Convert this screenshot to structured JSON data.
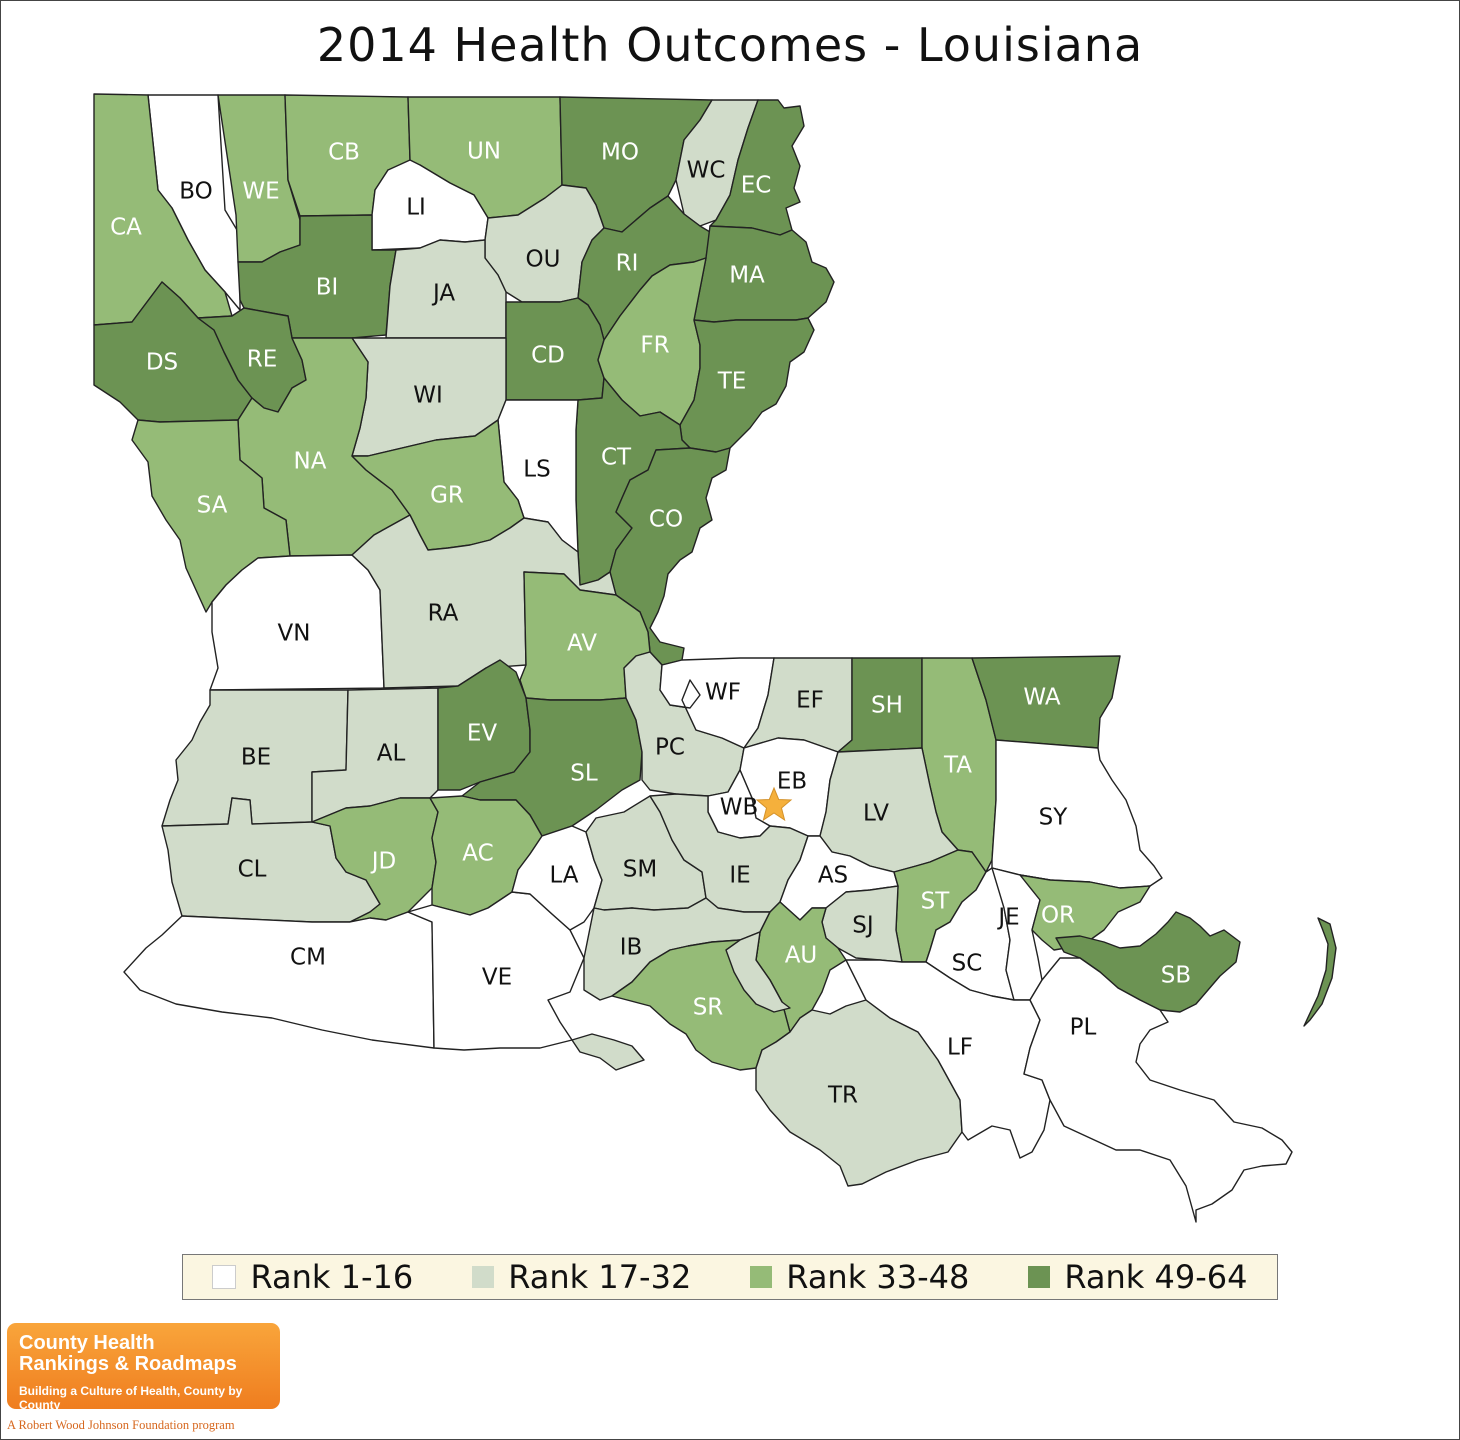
{
  "title": "2014 Health Outcomes - Louisiana",
  "colors": {
    "rank_1_16": "#ffffff",
    "rank_17_32": "#d1dcca",
    "rank_33_48": "#95bb77",
    "rank_49_64": "#6c9353",
    "star": "#f5b03c",
    "dark_label": "#ffffff",
    "light_label": "#111111"
  },
  "legend": [
    {
      "label": "Rank 1-16",
      "color": "#ffffff"
    },
    {
      "label": "Rank 17-32",
      "color": "#d1dcca"
    },
    {
      "label": "Rank 33-48",
      "color": "#95bb77"
    },
    {
      "label": "Rank 49-64",
      "color": "#6c9353"
    }
  ],
  "parishes": [
    {
      "code": "BO",
      "rank_group": "1-16"
    },
    {
      "code": "CA",
      "rank_group": "33-48"
    },
    {
      "code": "WE",
      "rank_group": "33-48"
    },
    {
      "code": "CB",
      "rank_group": "33-48"
    },
    {
      "code": "UN",
      "rank_group": "33-48"
    },
    {
      "code": "MO",
      "rank_group": "49-64"
    },
    {
      "code": "WC",
      "rank_group": "17-32"
    },
    {
      "code": "EC",
      "rank_group": "49-64"
    },
    {
      "code": "LI",
      "rank_group": "1-16"
    },
    {
      "code": "OU",
      "rank_group": "17-32"
    },
    {
      "code": "RI",
      "rank_group": "49-64"
    },
    {
      "code": "MA",
      "rank_group": "49-64"
    },
    {
      "code": "BI",
      "rank_group": "49-64"
    },
    {
      "code": "JA",
      "rank_group": "17-32"
    },
    {
      "code": "DS",
      "rank_group": "49-64"
    },
    {
      "code": "RE",
      "rank_group": "49-64"
    },
    {
      "code": "CD",
      "rank_group": "49-64"
    },
    {
      "code": "FR",
      "rank_group": "33-48"
    },
    {
      "code": "TE",
      "rank_group": "49-64"
    },
    {
      "code": "WI",
      "rank_group": "17-32"
    },
    {
      "code": "NA",
      "rank_group": "33-48"
    },
    {
      "code": "CT",
      "rank_group": "49-64"
    },
    {
      "code": "LS",
      "rank_group": "1-16"
    },
    {
      "code": "CO",
      "rank_group": "49-64"
    },
    {
      "code": "SA",
      "rank_group": "33-48"
    },
    {
      "code": "GR",
      "rank_group": "33-48"
    },
    {
      "code": "VN",
      "rank_group": "1-16"
    },
    {
      "code": "RA",
      "rank_group": "17-32"
    },
    {
      "code": "AV",
      "rank_group": "33-48"
    },
    {
      "code": "WF",
      "rank_group": "1-16"
    },
    {
      "code": "EF",
      "rank_group": "17-32"
    },
    {
      "code": "SH",
      "rank_group": "49-64"
    },
    {
      "code": "WA",
      "rank_group": "49-64"
    },
    {
      "code": "TA",
      "rank_group": "33-48"
    },
    {
      "code": "BE",
      "rank_group": "17-32"
    },
    {
      "code": "AL",
      "rank_group": "17-32"
    },
    {
      "code": "EV",
      "rank_group": "49-64"
    },
    {
      "code": "SL",
      "rank_group": "49-64"
    },
    {
      "code": "PC",
      "rank_group": "17-32"
    },
    {
      "code": "EB",
      "rank_group": "1-16"
    },
    {
      "code": "WB",
      "rank_group": "1-16"
    },
    {
      "code": "LV",
      "rank_group": "17-32"
    },
    {
      "code": "SY",
      "rank_group": "1-16"
    },
    {
      "code": "CL",
      "rank_group": "17-32"
    },
    {
      "code": "JD",
      "rank_group": "33-48"
    },
    {
      "code": "AC",
      "rank_group": "33-48"
    },
    {
      "code": "LA",
      "rank_group": "1-16"
    },
    {
      "code": "SM",
      "rank_group": "17-32"
    },
    {
      "code": "IE",
      "rank_group": "17-32"
    },
    {
      "code": "AS",
      "rank_group": "1-16"
    },
    {
      "code": "ST",
      "rank_group": "33-48"
    },
    {
      "code": "JE",
      "rank_group": "1-16"
    },
    {
      "code": "OR",
      "rank_group": "33-48"
    },
    {
      "code": "SJ",
      "rank_group": "17-32"
    },
    {
      "code": "SB",
      "rank_group": "49-64"
    },
    {
      "code": "CM",
      "rank_group": "1-16"
    },
    {
      "code": "VE",
      "rank_group": "1-16"
    },
    {
      "code": "IB",
      "rank_group": "17-32"
    },
    {
      "code": "AU",
      "rank_group": "33-48"
    },
    {
      "code": "SC",
      "rank_group": "1-16"
    },
    {
      "code": "SR",
      "rank_group": "33-48"
    },
    {
      "code": "LF",
      "rank_group": "1-16"
    },
    {
      "code": "PL",
      "rank_group": "1-16"
    },
    {
      "code": "TR",
      "rank_group": "17-32"
    }
  ],
  "logo": {
    "line1": "County Health",
    "line2": "Rankings & Roadmaps",
    "tagline": "Building a Culture of Health, County by County",
    "program": "A Robert Wood Johnson Foundation program"
  }
}
